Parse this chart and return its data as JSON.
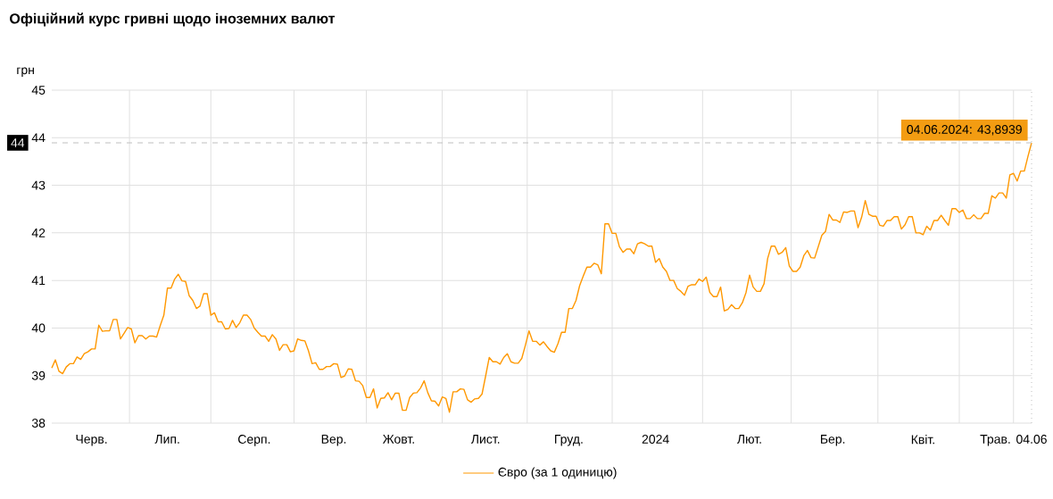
{
  "chart_data": {
    "type": "line",
    "title": "Офіційний курс гривні щодо іноземних валют",
    "ylabel": "грн",
    "categories": [
      null,
      null,
      null,
      null,
      null,
      null,
      null,
      null,
      null,
      null,
      null,
      "Черв.",
      null,
      null,
      null,
      null,
      null,
      null,
      null,
      null,
      null,
      null,
      null,
      null,
      null,
      null,
      null,
      null,
      null,
      null,
      null,
      null,
      "Лип.",
      null,
      null,
      null,
      null,
      null,
      null,
      null,
      null,
      null,
      null,
      null,
      null,
      null,
      null,
      null,
      null,
      null,
      null,
      null,
      null,
      null,
      null,
      null,
      "Серп.",
      null,
      null,
      null,
      null,
      null,
      null,
      null,
      null,
      null,
      null,
      null,
      null,
      null,
      null,
      null,
      null,
      null,
      null,
      null,
      null,
      null,
      "Вер.",
      null,
      null,
      null,
      null,
      null,
      null,
      null,
      null,
      null,
      null,
      null,
      null,
      null,
      null,
      null,
      null,
      null,
      "Жовт.",
      null,
      null,
      null,
      null,
      null,
      null,
      null,
      null,
      null,
      null,
      null,
      null,
      null,
      null,
      null,
      null,
      null,
      null,
      null,
      null,
      null,
      null,
      null,
      "Лист.",
      null,
      null,
      null,
      null,
      null,
      null,
      null,
      null,
      null,
      null,
      null,
      null,
      null,
      null,
      null,
      null,
      null,
      null,
      null,
      null,
      null,
      null,
      "Груд.",
      null,
      null,
      null,
      null,
      null,
      null,
      null,
      null,
      null,
      null,
      null,
      null,
      null,
      null,
      null,
      null,
      null,
      null,
      null,
      null,
      null,
      null,
      null,
      "2024",
      null,
      null,
      null,
      null,
      null,
      null,
      null,
      null,
      null,
      null,
      null,
      null,
      null,
      null,
      null,
      null,
      null,
      null,
      null,
      null,
      null,
      null,
      null,
      null,
      null,
      "Лют.",
      null,
      null,
      null,
      null,
      null,
      null,
      null,
      null,
      null,
      null,
      null,
      null,
      null,
      null,
      null,
      null,
      null,
      null,
      null,
      null,
      null,
      null,
      "Бер.",
      null,
      null,
      null,
      null,
      null,
      null,
      null,
      null,
      null,
      null,
      null,
      null,
      null,
      null,
      null,
      null,
      null,
      null,
      null,
      null,
      null,
      null,
      null,
      null,
      "Квіт.",
      null,
      null,
      null,
      null,
      null,
      null,
      null,
      null,
      null,
      null,
      null,
      null,
      null,
      null,
      null,
      null,
      null,
      null,
      null,
      "Трав.",
      null,
      null,
      null,
      null,
      null,
      null,
      null,
      null,
      null,
      "04.06"
    ],
    "series": [
      {
        "name": "Євро (за 1 одиницю)",
        "color": "#ff9800",
        "values": [
          39.16,
          39.33,
          39.09,
          39.04,
          39.18,
          39.25,
          39.25,
          39.39,
          39.34,
          39.46,
          39.5,
          39.56,
          39.56,
          40.06,
          39.93,
          39.94,
          39.94,
          40.18,
          40.18,
          39.77,
          39.89,
          40.01,
          39.98,
          39.69,
          39.84,
          39.84,
          39.77,
          39.83,
          39.83,
          39.81,
          40.05,
          40.27,
          40.84,
          40.84,
          41.03,
          41.13,
          40.99,
          40.98,
          40.68,
          40.58,
          40.41,
          40.46,
          40.72,
          40.72,
          40.27,
          40.32,
          40.13,
          40.13,
          39.98,
          39.99,
          40.16,
          40.01,
          40.11,
          40.27,
          40.27,
          40.18,
          40.0,
          39.91,
          39.83,
          39.83,
          39.72,
          39.86,
          39.77,
          39.53,
          39.65,
          39.65,
          39.5,
          39.52,
          39.77,
          39.74,
          39.73,
          39.52,
          39.25,
          39.27,
          39.13,
          39.13,
          39.19,
          39.19,
          39.25,
          39.24,
          38.96,
          38.99,
          39.14,
          39.13,
          38.89,
          38.88,
          38.79,
          38.54,
          38.54,
          38.72,
          38.32,
          38.52,
          38.53,
          38.64,
          38.49,
          38.63,
          38.63,
          38.27,
          38.27,
          38.54,
          38.63,
          38.64,
          38.74,
          38.89,
          38.64,
          38.47,
          38.46,
          38.36,
          38.55,
          38.52,
          38.23,
          38.66,
          38.66,
          38.72,
          38.71,
          38.49,
          38.44,
          38.51,
          38.52,
          38.61,
          38.99,
          39.38,
          39.29,
          39.29,
          39.24,
          39.38,
          39.46,
          39.29,
          39.26,
          39.26,
          39.36,
          39.64,
          39.94,
          39.72,
          39.72,
          39.64,
          39.71,
          39.61,
          39.52,
          39.49,
          39.67,
          39.91,
          39.91,
          40.41,
          40.41,
          40.58,
          40.89,
          41.09,
          41.28,
          41.28,
          41.36,
          41.33,
          41.14,
          42.19,
          42.19,
          41.99,
          41.99,
          41.71,
          41.59,
          41.66,
          41.66,
          41.56,
          41.77,
          41.8,
          41.77,
          41.72,
          41.72,
          41.38,
          41.46,
          41.28,
          41.19,
          41.0,
          41.0,
          40.83,
          40.77,
          40.69,
          40.88,
          40.91,
          40.91,
          41.03,
          40.98,
          41.07,
          40.75,
          40.66,
          40.66,
          40.86,
          40.36,
          40.39,
          40.49,
          40.41,
          40.41,
          40.53,
          40.74,
          41.11,
          40.86,
          40.77,
          40.77,
          40.93,
          41.46,
          41.72,
          41.72,
          41.55,
          41.59,
          41.69,
          41.3,
          41.19,
          41.19,
          41.28,
          41.52,
          41.63,
          41.48,
          41.47,
          41.71,
          41.95,
          42.03,
          42.39,
          42.27,
          42.27,
          42.22,
          42.44,
          42.43,
          42.46,
          42.46,
          42.11,
          42.33,
          42.68,
          42.39,
          42.35,
          42.35,
          42.16,
          42.14,
          42.26,
          42.26,
          42.34,
          42.34,
          42.08,
          42.17,
          42.34,
          42.34,
          42.0,
          42.0,
          41.96,
          42.14,
          42.06,
          42.26,
          42.26,
          42.37,
          42.26,
          42.16,
          42.51,
          42.51,
          42.43,
          42.48,
          42.3,
          42.3,
          42.38,
          42.3,
          42.3,
          42.41,
          42.41,
          42.78,
          42.73,
          42.84,
          42.84,
          42.73,
          43.22,
          43.25,
          43.09,
          43.3,
          43.3,
          43.61,
          43.8939
        ]
      }
    ],
    "ylim": [
      38,
      45
    ],
    "yticks": [
      38,
      39,
      40,
      41,
      42,
      43,
      44,
      45
    ],
    "grid": true,
    "legend": "bottom",
    "line_style": "solid",
    "ref_lines": [
      {
        "axis": "y",
        "value": 43.8939,
        "label": "44",
        "color": "#c0c0c0",
        "line_style": "dashed"
      },
      {
        "axis": "x",
        "value": "04.06",
        "color": "#c0c0c0",
        "line_style": "dotted"
      }
    ],
    "annotations": [
      {
        "text": "04.06.2024: 43,8939",
        "x": "04.06",
        "y": 43.8939
      }
    ]
  }
}
